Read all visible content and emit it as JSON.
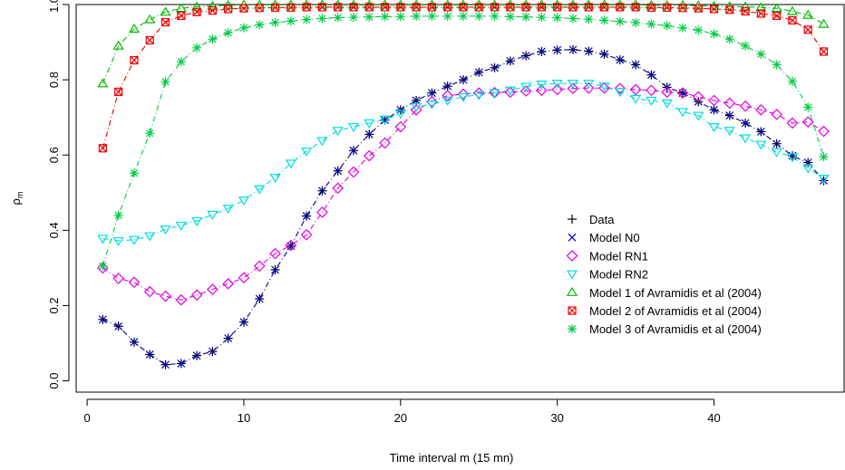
{
  "chart_data": {
    "type": "scatter",
    "title": "",
    "xlabel": "Time interval m (15 mn)",
    "ylabel": "ρ",
    "ylabel_subscript": "m",
    "xlim": [
      0,
      48
    ],
    "ylim": [
      -0.03,
      1.0
    ],
    "xticks": [
      0,
      10,
      20,
      30,
      40
    ],
    "yticks": [
      0.0,
      0.2,
      0.4,
      0.6,
      0.8,
      1.0
    ],
    "ytick_labels": [
      "0.0",
      "0.2",
      "0.4",
      "0.6",
      "0.8",
      "1.0"
    ],
    "legend_position": "right",
    "series": [
      {
        "name": "Data",
        "marker": "plus",
        "color": "#000000",
        "line": false,
        "x": [
          1,
          2,
          3,
          4,
          5,
          6,
          7,
          8,
          9,
          10,
          11,
          12,
          13,
          14,
          15,
          16,
          17,
          18,
          19,
          20,
          21,
          22,
          23,
          24,
          25,
          26,
          27,
          28,
          29,
          30,
          31,
          32,
          33,
          34,
          35,
          36,
          37,
          38,
          39,
          40,
          41,
          42,
          43,
          44,
          45,
          46,
          47
        ],
        "values": [
          0.163,
          0.145,
          0.103,
          0.07,
          0.043,
          0.046,
          0.067,
          0.078,
          0.113,
          0.156,
          0.218,
          0.295,
          0.358,
          0.438,
          0.505,
          0.558,
          0.612,
          0.655,
          0.693,
          0.72,
          0.745,
          0.765,
          0.783,
          0.8,
          0.82,
          0.832,
          0.85,
          0.864,
          0.875,
          0.879,
          0.88,
          0.876,
          0.868,
          0.853,
          0.84,
          0.813,
          0.78,
          0.765,
          0.742,
          0.72,
          0.705,
          0.685,
          0.662,
          0.63,
          0.598,
          0.58,
          0.532
        ]
      },
      {
        "name": "Model N0",
        "marker": "x",
        "color": "#0000cc",
        "line": true,
        "line_color": "#00008b",
        "x": [
          1,
          2,
          3,
          4,
          5,
          6,
          7,
          8,
          9,
          10,
          11,
          12,
          13,
          14,
          15,
          16,
          17,
          18,
          19,
          20,
          21,
          22,
          23,
          24,
          25,
          26,
          27,
          28,
          29,
          30,
          31,
          32,
          33,
          34,
          35,
          36,
          37,
          38,
          39,
          40,
          41,
          42,
          43,
          44,
          45,
          46,
          47
        ],
        "values": [
          0.163,
          0.145,
          0.103,
          0.07,
          0.043,
          0.046,
          0.067,
          0.078,
          0.113,
          0.156,
          0.218,
          0.295,
          0.358,
          0.438,
          0.505,
          0.558,
          0.612,
          0.655,
          0.693,
          0.72,
          0.745,
          0.765,
          0.783,
          0.8,
          0.82,
          0.832,
          0.85,
          0.864,
          0.875,
          0.879,
          0.88,
          0.876,
          0.868,
          0.853,
          0.84,
          0.813,
          0.78,
          0.765,
          0.742,
          0.72,
          0.705,
          0.685,
          0.662,
          0.63,
          0.598,
          0.58,
          0.532
        ]
      },
      {
        "name": "Model RN1",
        "marker": "diamond",
        "color": "#e000e0",
        "line": true,
        "x": [
          1,
          2,
          3,
          4,
          5,
          6,
          7,
          8,
          9,
          10,
          11,
          12,
          13,
          14,
          15,
          16,
          17,
          18,
          19,
          20,
          21,
          22,
          23,
          24,
          25,
          26,
          27,
          28,
          29,
          30,
          31,
          32,
          33,
          34,
          35,
          36,
          37,
          38,
          39,
          40,
          41,
          42,
          43,
          44,
          45,
          46,
          47
        ],
        "values": [
          0.3,
          0.272,
          0.262,
          0.237,
          0.225,
          0.215,
          0.228,
          0.243,
          0.258,
          0.274,
          0.305,
          0.338,
          0.36,
          0.388,
          0.448,
          0.512,
          0.555,
          0.598,
          0.632,
          0.675,
          0.72,
          0.742,
          0.758,
          0.762,
          0.765,
          0.766,
          0.767,
          0.77,
          0.772,
          0.774,
          0.777,
          0.778,
          0.778,
          0.777,
          0.774,
          0.772,
          0.767,
          0.765,
          0.755,
          0.745,
          0.738,
          0.73,
          0.72,
          0.708,
          0.685,
          0.688,
          0.663
        ]
      },
      {
        "name": "Model RN2",
        "marker": "triangle-down",
        "color": "#00dddd",
        "line": true,
        "x": [
          1,
          2,
          3,
          4,
          5,
          6,
          7,
          8,
          9,
          10,
          11,
          12,
          13,
          14,
          15,
          16,
          17,
          18,
          19,
          20,
          21,
          22,
          23,
          24,
          25,
          26,
          27,
          28,
          29,
          30,
          31,
          32,
          33,
          34,
          35,
          36,
          37,
          38,
          39,
          40,
          41,
          42,
          43,
          44,
          45,
          46,
          47
        ],
        "values": [
          0.378,
          0.372,
          0.375,
          0.385,
          0.403,
          0.413,
          0.425,
          0.442,
          0.458,
          0.48,
          0.51,
          0.54,
          0.578,
          0.61,
          0.638,
          0.665,
          0.675,
          0.685,
          0.695,
          0.71,
          0.728,
          0.735,
          0.745,
          0.755,
          0.76,
          0.765,
          0.772,
          0.782,
          0.788,
          0.79,
          0.79,
          0.79,
          0.783,
          0.768,
          0.75,
          0.745,
          0.738,
          0.715,
          0.705,
          0.675,
          0.665,
          0.645,
          0.628,
          0.608,
          0.595,
          0.565,
          0.538
        ]
      },
      {
        "name": "Model 1 of Avramidis et al (2004)",
        "marker": "triangle-up",
        "color": "#00bb00",
        "line": true,
        "x": [
          1,
          2,
          3,
          4,
          5,
          6,
          7,
          8,
          9,
          10,
          11,
          12,
          13,
          14,
          15,
          16,
          17,
          18,
          19,
          20,
          21,
          22,
          23,
          24,
          25,
          26,
          27,
          28,
          29,
          30,
          31,
          32,
          33,
          34,
          35,
          36,
          37,
          38,
          39,
          40,
          41,
          42,
          43,
          44,
          45,
          46,
          47
        ],
        "values": [
          0.79,
          0.89,
          0.935,
          0.96,
          0.98,
          0.99,
          0.994,
          0.996,
          0.998,
          0.999,
          0.999,
          0.999,
          0.999,
          0.999,
          0.999,
          0.999,
          0.999,
          0.999,
          0.999,
          0.999,
          0.999,
          0.999,
          0.999,
          0.999,
          0.999,
          0.999,
          0.999,
          0.999,
          0.999,
          0.999,
          0.999,
          0.999,
          0.999,
          0.999,
          0.999,
          0.998,
          0.998,
          0.998,
          0.997,
          0.996,
          0.995,
          0.994,
          0.992,
          0.99,
          0.982,
          0.972,
          0.948
        ]
      },
      {
        "name": "Model 2 of Avramidis et al (2004)",
        "marker": "square-x",
        "color": "#ee0000",
        "line": true,
        "x": [
          1,
          2,
          3,
          4,
          5,
          6,
          7,
          8,
          9,
          10,
          11,
          12,
          13,
          14,
          15,
          16,
          17,
          18,
          19,
          20,
          21,
          22,
          23,
          24,
          25,
          26,
          27,
          28,
          29,
          30,
          31,
          32,
          33,
          34,
          35,
          36,
          37,
          38,
          39,
          40,
          41,
          42,
          43,
          44,
          45,
          46,
          47
        ],
        "values": [
          0.618,
          0.768,
          0.852,
          0.905,
          0.953,
          0.97,
          0.98,
          0.984,
          0.988,
          0.99,
          0.991,
          0.992,
          0.992,
          0.993,
          0.993,
          0.993,
          0.993,
          0.993,
          0.993,
          0.993,
          0.993,
          0.993,
          0.993,
          0.993,
          0.993,
          0.993,
          0.993,
          0.993,
          0.993,
          0.993,
          0.993,
          0.993,
          0.993,
          0.993,
          0.993,
          0.992,
          0.992,
          0.991,
          0.99,
          0.988,
          0.986,
          0.982,
          0.976,
          0.97,
          0.958,
          0.933,
          0.875
        ]
      },
      {
        "name": "Model 3 of Avramidis et al (2004)",
        "marker": "asterisk",
        "color": "#00cc44",
        "line": true,
        "x": [
          1,
          2,
          3,
          4,
          5,
          6,
          7,
          8,
          9,
          10,
          11,
          12,
          13,
          14,
          15,
          16,
          17,
          18,
          19,
          20,
          21,
          22,
          23,
          24,
          25,
          26,
          27,
          28,
          29,
          30,
          31,
          32,
          33,
          34,
          35,
          36,
          37,
          38,
          39,
          40,
          41,
          42,
          43,
          44,
          45,
          46,
          47
        ],
        "values": [
          0.305,
          0.44,
          0.552,
          0.658,
          0.795,
          0.848,
          0.885,
          0.908,
          0.925,
          0.938,
          0.946,
          0.952,
          0.956,
          0.96,
          0.963,
          0.965,
          0.966,
          0.967,
          0.968,
          0.968,
          0.969,
          0.969,
          0.969,
          0.969,
          0.969,
          0.969,
          0.968,
          0.967,
          0.966,
          0.965,
          0.963,
          0.961,
          0.958,
          0.955,
          0.952,
          0.948,
          0.944,
          0.938,
          0.932,
          0.922,
          0.908,
          0.89,
          0.868,
          0.84,
          0.796,
          0.727,
          0.595
        ]
      }
    ]
  }
}
